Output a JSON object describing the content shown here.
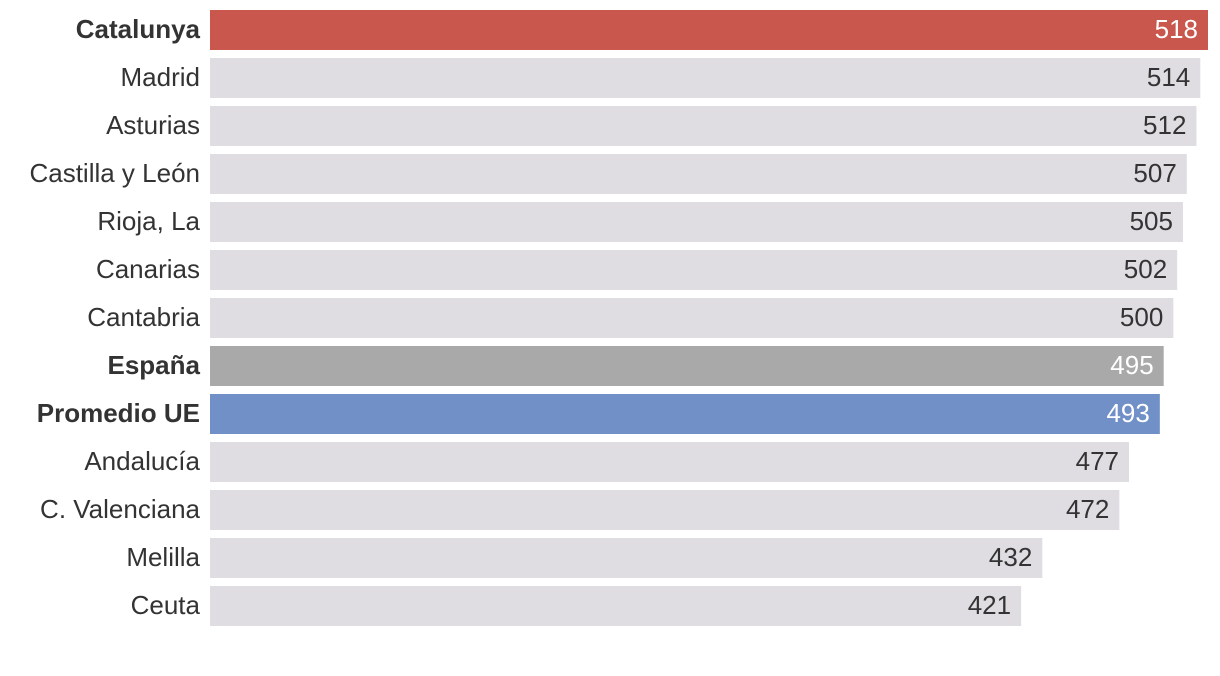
{
  "chart_data": {
    "type": "hbar",
    "categories": [
      "Catalunya",
      "Madrid",
      "Asturias",
      "Castilla y León",
      "Rioja, La",
      "Canarias",
      "Cantabria",
      "España",
      "Promedio UE",
      "Andalucía",
      "C. Valenciana",
      "Melilla",
      "Ceuta"
    ],
    "values": [
      518,
      514,
      512,
      507,
      505,
      502,
      500,
      495,
      493,
      477,
      472,
      432,
      421
    ],
    "colors": [
      "#c9574d",
      "#dfdde2",
      "#dfdde2",
      "#dfdde2",
      "#dfdde2",
      "#dfdde2",
      "#dfdde2",
      "#a9a9a9",
      "#7090c7",
      "#dfdde2",
      "#dfdde2",
      "#dfdde2",
      "#dfdde2"
    ],
    "bold": [
      true,
      false,
      false,
      false,
      false,
      false,
      false,
      true,
      true,
      false,
      false,
      false,
      false
    ]
  }
}
